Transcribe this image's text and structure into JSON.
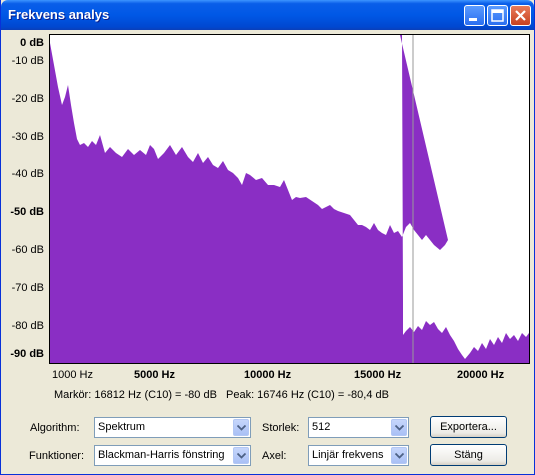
{
  "window": {
    "title": "Frekvens analys"
  },
  "plot": {
    "y_labels": [
      "0 dB",
      "-10 dB",
      "-20 dB",
      "-30 dB",
      "-40 dB",
      "-50 dB",
      "-60 dB",
      "-70 dB",
      "-80 dB",
      "-90 dB"
    ],
    "x_labels": [
      "1000 Hz",
      "5000 Hz",
      "10000 Hz",
      "15000 Hz",
      "20000 Hz"
    ],
    "marker_hz": 16812,
    "fill_color": "#8a2ec4"
  },
  "status": {
    "cursor": "Markör: 16812 Hz (C10) = -80 dB",
    "peak": "Peak: 16746 Hz (C10) = -80,4 dB"
  },
  "controls": {
    "algorithm_label": "Algorithm:",
    "algorithm_value": "Spektrum",
    "size_label": "Storlek:",
    "size_value": "512",
    "export_label": "Exportera...",
    "functions_label": "Funktioner:",
    "functions_value": "Blackman-Harris fönstring",
    "axis_label": "Axel:",
    "axis_value": "Linjär frekvens",
    "close_label": "Stäng"
  }
}
